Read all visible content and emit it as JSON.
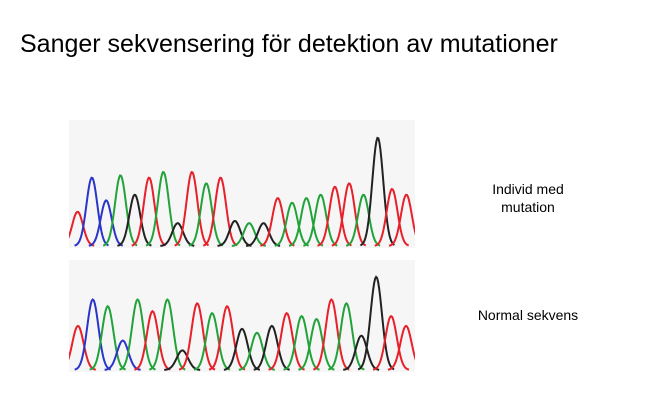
{
  "slide": {
    "title": "Sanger sekvensering för detektion av mutationer"
  },
  "traces": [
    {
      "id": "mutation",
      "label_line1": "Individ med",
      "label_line2": "mutation",
      "peaks": [
        [
          "red",
          0.3
        ],
        [
          "blue",
          0.6
        ],
        [
          "blue",
          0.4
        ],
        [
          "green",
          0.62
        ],
        [
          "black",
          0.45
        ],
        [
          "red",
          0.6
        ],
        [
          "green",
          0.65
        ],
        [
          "black",
          0.2
        ],
        [
          "red",
          0.65
        ],
        [
          "green",
          0.55
        ],
        [
          "red",
          0.6
        ],
        [
          "black",
          0.22
        ],
        [
          "green",
          0.2
        ],
        [
          "black",
          0.2
        ],
        [
          "red",
          0.42
        ],
        [
          "green",
          0.38
        ],
        [
          "green",
          0.42
        ],
        [
          "green",
          0.45
        ],
        [
          "red",
          0.52
        ],
        [
          "red",
          0.55
        ],
        [
          "green",
          0.45
        ],
        [
          "black",
          0.95
        ],
        [
          "red",
          0.5
        ],
        [
          "red",
          0.45
        ]
      ]
    },
    {
      "id": "normal",
      "label_line1": "Normal sekvens",
      "peaks": [
        [
          "red",
          0.45
        ],
        [
          "blue",
          0.72
        ],
        [
          "green",
          0.65
        ],
        [
          "blue",
          0.3
        ],
        [
          "green",
          0.72
        ],
        [
          "red",
          0.6
        ],
        [
          "green",
          0.72
        ],
        [
          "black",
          0.2
        ],
        [
          "red",
          0.68
        ],
        [
          "green",
          0.58
        ],
        [
          "red",
          0.65
        ],
        [
          "black",
          0.42
        ],
        [
          "green",
          0.38
        ],
        [
          "black",
          0.45
        ],
        [
          "red",
          0.58
        ],
        [
          "green",
          0.55
        ],
        [
          "green",
          0.52
        ],
        [
          "red",
          0.72
        ],
        [
          "green",
          0.68
        ],
        [
          "black",
          0.35
        ],
        [
          "black",
          0.95
        ],
        [
          "red",
          0.55
        ],
        [
          "red",
          0.45
        ]
      ]
    }
  ],
  "colors": {
    "red": "#e8202a",
    "blue": "#2a35c9",
    "green": "#22a33a",
    "black": "#222222",
    "panel_bg": "#f6f6f6"
  }
}
